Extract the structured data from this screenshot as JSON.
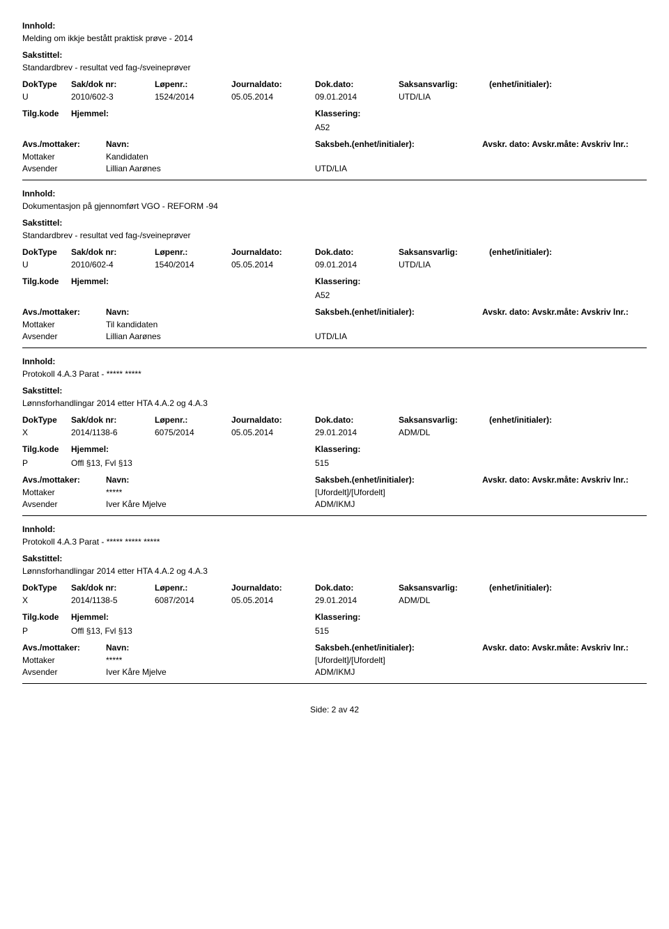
{
  "labels": {
    "innhold": "Innhold:",
    "sakstittel": "Sakstittel:",
    "doktype": "DokType",
    "sakdok": "Sak/dok nr:",
    "lopenr": "Løpenr.:",
    "journaldato": "Journaldato:",
    "dokdato": "Dok.dato:",
    "saksansvarlig": "Saksansvarlig:",
    "enhet": "(enhet/initialer):",
    "tilgkode": "Tilg.kode",
    "hjemmel": "Hjemmel:",
    "klassering": "Klassering:",
    "avsmottaker": "Avs./mottaker:",
    "navn": "Navn:",
    "saksbeh": "Saksbeh.(enhet/initialer):",
    "avskr": "Avskr. dato:  Avskr.måte:  Avskriv lnr.:",
    "mottaker": "Mottaker",
    "avsender": "Avsender"
  },
  "entries": [
    {
      "innhold": "Melding om ikkje bestått praktisk prøve - 2014",
      "sakstittel": "Standardbrev - resultat ved fag-/sveineprøver",
      "doktype": "U",
      "sakdok": "2010/602-3",
      "lopenr": "1524/2014",
      "journaldato": "05.05.2014",
      "dokdato": "09.01.2014",
      "saksansvarlig": "UTD/LIA",
      "tilgkode": "",
      "hjemmel": "",
      "klassering": "A52",
      "mottaker_name": "Kandidaten",
      "mottaker_saksb": "",
      "avsender_name": "Lillian Aarønes",
      "avsender_saksb": "UTD/LIA"
    },
    {
      "innhold": "Dokumentasjon på gjennomført VGO - REFORM -94",
      "sakstittel": "Standardbrev - resultat ved fag-/sveineprøver",
      "doktype": "U",
      "sakdok": "2010/602-4",
      "lopenr": "1540/2014",
      "journaldato": "05.05.2014",
      "dokdato": "09.01.2014",
      "saksansvarlig": "UTD/LIA",
      "tilgkode": "",
      "hjemmel": "",
      "klassering": "A52",
      "mottaker_name": "Til kandidaten",
      "mottaker_saksb": "",
      "avsender_name": "Lillian Aarønes",
      "avsender_saksb": "UTD/LIA"
    },
    {
      "innhold": "Protokoll 4.A.3 Parat - ***** *****",
      "sakstittel": "Lønnsforhandlingar 2014 etter HTA 4.A.2 og 4.A.3",
      "doktype": "X",
      "sakdok": "2014/1138-6",
      "lopenr": "6075/2014",
      "journaldato": "05.05.2014",
      "dokdato": "29.01.2014",
      "saksansvarlig": "ADM/DL",
      "tilgkode": "P",
      "hjemmel": "Offl §13, Fvl §13",
      "klassering": "515",
      "mottaker_name": "*****",
      "mottaker_saksb": "[Ufordelt]/[Ufordelt]",
      "avsender_name": "Iver Kåre Mjelve",
      "avsender_saksb": "ADM/IKMJ"
    },
    {
      "innhold": "Protokoll 4.A.3 Parat - ***** ***** *****",
      "sakstittel": "Lønnsforhandlingar 2014 etter HTA 4.A.2 og 4.A.3",
      "doktype": "X",
      "sakdok": "2014/1138-5",
      "lopenr": "6087/2014",
      "journaldato": "05.05.2014",
      "dokdato": "29.01.2014",
      "saksansvarlig": "ADM/DL",
      "tilgkode": "P",
      "hjemmel": "Offl §13, Fvl §13",
      "klassering": "515",
      "mottaker_name": "*****",
      "mottaker_saksb": "[Ufordelt]/[Ufordelt]",
      "avsender_name": "Iver Kåre Mjelve",
      "avsender_saksb": "ADM/IKMJ"
    }
  ],
  "footer": "Side: 2 av 42"
}
